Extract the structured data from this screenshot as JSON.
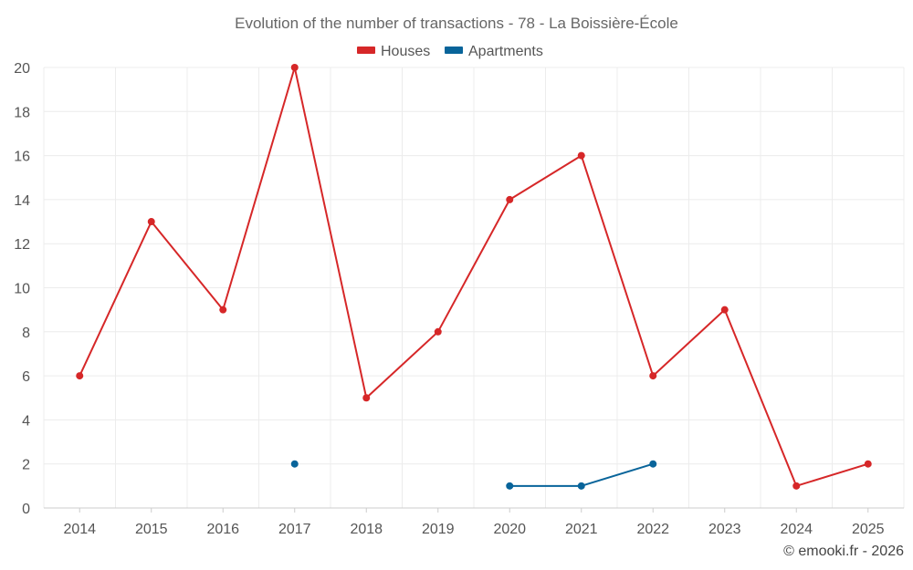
{
  "chart_data": {
    "type": "line",
    "title": "Evolution of the number of transactions - 78 - La Boissière-École",
    "categories": [
      "2014",
      "2015",
      "2016",
      "2017",
      "2018",
      "2019",
      "2020",
      "2021",
      "2022",
      "2023",
      "2024",
      "2025"
    ],
    "series": [
      {
        "name": "Houses",
        "color": "#d62728",
        "values": [
          6,
          13,
          9,
          20,
          5,
          8,
          14,
          16,
          6,
          9,
          1,
          2
        ]
      },
      {
        "name": "Apartments",
        "color": "#08649a",
        "values": [
          null,
          null,
          null,
          2,
          null,
          null,
          1,
          1,
          2,
          null,
          null,
          null
        ]
      }
    ],
    "ylim": [
      0,
      20
    ],
    "yticks": [
      0,
      2,
      4,
      6,
      8,
      10,
      12,
      14,
      16,
      18,
      20
    ],
    "xlabel": "",
    "ylabel": "",
    "legend": "top-center",
    "grid": true
  },
  "credit": "© emooki.fr - 2026"
}
